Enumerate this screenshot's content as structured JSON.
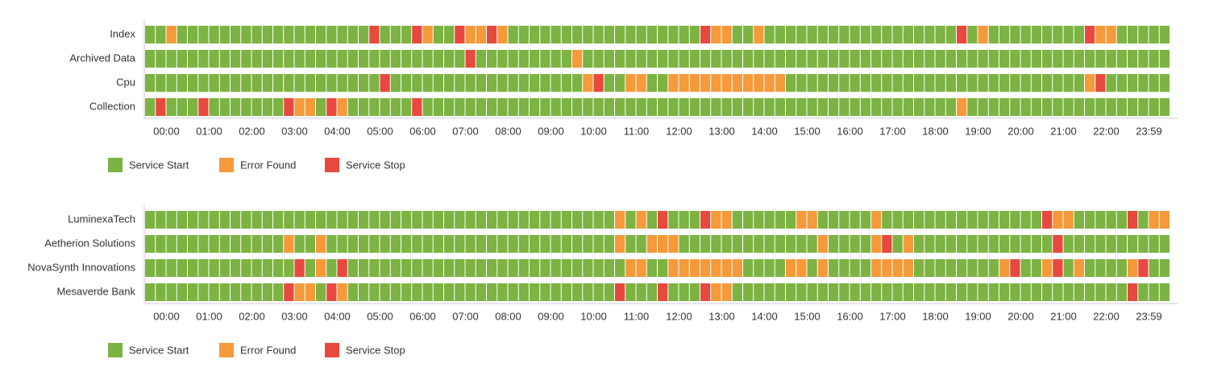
{
  "chart_data": [
    {
      "type": "timeline",
      "categories": [
        "Index",
        "Archived Data",
        "Cpu",
        "Collection"
      ],
      "x": [
        "00:00",
        "01:00",
        "02:00",
        "03:00",
        "04:00",
        "05:00",
        "06:00",
        "07:00",
        "08:00",
        "09:00",
        "10:00",
        "11:00",
        "12:00",
        "13:00",
        "14:00",
        "15:00",
        "16:00",
        "17:00",
        "18:00",
        "19:00",
        "20:00",
        "21:00",
        "22:00",
        "23:59"
      ],
      "series": [
        {
          "name": "Service Start",
          "color": "#7cb342"
        },
        {
          "name": "Error Found",
          "color": "#f59a3a"
        },
        {
          "name": "Service Stop",
          "color": "#e8493f"
        }
      ],
      "values": [
        [
          0,
          0,
          1,
          0,
          0,
          0,
          0,
          0,
          0,
          0,
          0,
          0,
          0,
          0,
          0,
          0,
          0,
          0,
          0,
          0,
          0,
          2,
          0,
          0,
          0,
          2,
          1,
          0,
          0,
          2,
          1,
          1,
          2,
          1,
          0,
          0,
          0,
          0,
          0,
          0,
          0,
          0,
          0,
          0,
          0,
          0,
          0,
          0,
          0,
          0,
          0,
          0,
          2,
          1,
          1,
          0,
          0,
          1,
          0,
          0,
          0,
          0,
          0,
          0,
          0,
          0,
          0,
          0,
          0,
          0,
          0,
          0,
          0,
          0,
          0,
          0,
          2,
          0,
          1,
          0,
          0,
          0,
          0,
          0,
          0,
          0,
          0,
          0,
          2,
          1,
          1,
          0,
          0,
          0,
          0,
          0
        ],
        [
          0,
          0,
          0,
          0,
          0,
          0,
          0,
          0,
          0,
          0,
          0,
          0,
          0,
          0,
          0,
          0,
          0,
          0,
          0,
          0,
          0,
          0,
          0,
          0,
          0,
          0,
          0,
          0,
          0,
          0,
          2,
          0,
          0,
          0,
          0,
          0,
          0,
          0,
          0,
          0,
          1,
          0,
          0,
          0,
          0,
          0,
          0,
          0,
          0,
          0,
          0,
          0,
          0,
          0,
          0,
          0,
          0,
          0,
          0,
          0,
          0,
          0,
          0,
          0,
          0,
          0,
          0,
          0,
          0,
          0,
          0,
          0,
          0,
          0,
          0,
          0,
          0,
          0,
          0,
          0,
          0,
          0,
          0,
          0,
          0,
          0,
          0,
          0,
          0,
          0,
          0,
          0,
          0,
          0,
          0,
          0
        ],
        [
          0,
          0,
          0,
          0,
          0,
          0,
          0,
          0,
          0,
          0,
          0,
          0,
          0,
          0,
          0,
          0,
          0,
          0,
          0,
          0,
          0,
          0,
          2,
          0,
          0,
          0,
          0,
          0,
          0,
          0,
          0,
          0,
          0,
          0,
          0,
          0,
          0,
          0,
          0,
          0,
          0,
          1,
          2,
          0,
          0,
          1,
          1,
          0,
          0,
          1,
          1,
          1,
          1,
          1,
          1,
          1,
          1,
          1,
          1,
          1,
          0,
          0,
          0,
          0,
          0,
          0,
          0,
          0,
          0,
          0,
          0,
          0,
          0,
          0,
          0,
          0,
          0,
          0,
          0,
          0,
          0,
          0,
          0,
          0,
          0,
          0,
          0,
          0,
          1,
          2,
          0,
          0,
          0,
          0,
          0,
          0
        ],
        [
          0,
          2,
          0,
          0,
          0,
          2,
          0,
          0,
          0,
          0,
          0,
          0,
          0,
          2,
          1,
          1,
          0,
          2,
          1,
          0,
          0,
          0,
          0,
          0,
          0,
          2,
          0,
          0,
          0,
          0,
          0,
          0,
          0,
          0,
          0,
          0,
          0,
          0,
          0,
          0,
          0,
          0,
          0,
          0,
          0,
          0,
          0,
          0,
          0,
          0,
          0,
          0,
          0,
          0,
          0,
          0,
          0,
          0,
          0,
          0,
          0,
          0,
          0,
          0,
          0,
          0,
          0,
          0,
          0,
          0,
          0,
          0,
          0,
          0,
          0,
          0,
          1,
          0,
          0,
          0,
          0,
          0,
          0,
          0,
          0,
          0,
          0,
          0,
          0,
          0,
          0,
          0,
          0,
          0,
          0,
          0
        ]
      ]
    },
    {
      "type": "timeline",
      "categories": [
        "LuminexaTech",
        "Aetherion Solutions",
        "NovaSynth Innovations",
        "Mesaverde Bank"
      ],
      "x": [
        "00:00",
        "01:00",
        "02:00",
        "03:00",
        "04:00",
        "05:00",
        "06:00",
        "07:00",
        "08:00",
        "09:00",
        "10:00",
        "11:00",
        "12:00",
        "13:00",
        "14:00",
        "15:00",
        "16:00",
        "17:00",
        "18:00",
        "19:00",
        "20:00",
        "21:00",
        "22:00",
        "23:59"
      ],
      "series": [
        {
          "name": "Service Start",
          "color": "#7cb342"
        },
        {
          "name": "Error Found",
          "color": "#f59a3a"
        },
        {
          "name": "Service Stop",
          "color": "#e8493f"
        }
      ],
      "values": [
        [
          0,
          0,
          0,
          0,
          0,
          0,
          0,
          0,
          0,
          0,
          0,
          0,
          0,
          0,
          0,
          0,
          0,
          0,
          0,
          0,
          0,
          0,
          0,
          0,
          0,
          0,
          0,
          0,
          0,
          0,
          0,
          0,
          0,
          0,
          0,
          0,
          0,
          0,
          0,
          0,
          0,
          0,
          0,
          0,
          1,
          0,
          1,
          0,
          2,
          0,
          0,
          0,
          2,
          1,
          1,
          0,
          0,
          0,
          0,
          0,
          0,
          1,
          1,
          0,
          0,
          0,
          0,
          0,
          1,
          0,
          0,
          0,
          0,
          0,
          0,
          0,
          0,
          0,
          0,
          0,
          0,
          0,
          0,
          0,
          2,
          1,
          1,
          0,
          0,
          0,
          0,
          0,
          2,
          0,
          1,
          1
        ],
        [
          0,
          0,
          0,
          0,
          0,
          0,
          0,
          0,
          0,
          0,
          0,
          0,
          0,
          1,
          0,
          0,
          1,
          0,
          0,
          0,
          0,
          0,
          0,
          0,
          0,
          0,
          0,
          0,
          0,
          0,
          0,
          0,
          0,
          0,
          0,
          0,
          0,
          0,
          0,
          0,
          0,
          0,
          0,
          0,
          1,
          0,
          0,
          1,
          1,
          1,
          0,
          0,
          0,
          0,
          0,
          0,
          0,
          0,
          0,
          0,
          0,
          0,
          0,
          1,
          0,
          0,
          0,
          0,
          1,
          2,
          0,
          1,
          0,
          0,
          0,
          0,
          0,
          0,
          0,
          0,
          0,
          0,
          0,
          0,
          0,
          2,
          0,
          0,
          0,
          0,
          0,
          0,
          0,
          0,
          0,
          0
        ],
        [
          0,
          0,
          0,
          0,
          0,
          0,
          0,
          0,
          0,
          0,
          0,
          0,
          0,
          0,
          2,
          0,
          1,
          0,
          2,
          0,
          0,
          0,
          0,
          0,
          0,
          0,
          0,
          0,
          0,
          0,
          0,
          0,
          0,
          0,
          0,
          0,
          0,
          0,
          0,
          0,
          0,
          0,
          0,
          0,
          0,
          1,
          1,
          0,
          0,
          1,
          1,
          1,
          1,
          1,
          1,
          1,
          0,
          0,
          0,
          0,
          1,
          1,
          0,
          1,
          0,
          0,
          0,
          0,
          1,
          1,
          1,
          1,
          0,
          0,
          0,
          0,
          0,
          0,
          0,
          0,
          1,
          2,
          0,
          0,
          1,
          2,
          0,
          1,
          0,
          0,
          0,
          0,
          1,
          2,
          0,
          0
        ],
        [
          0,
          0,
          0,
          0,
          0,
          0,
          0,
          0,
          0,
          0,
          0,
          0,
          0,
          2,
          1,
          1,
          0,
          2,
          1,
          0,
          0,
          0,
          0,
          0,
          0,
          0,
          0,
          0,
          0,
          0,
          0,
          0,
          0,
          0,
          0,
          0,
          0,
          0,
          0,
          0,
          0,
          0,
          0,
          0,
          2,
          0,
          0,
          0,
          2,
          0,
          0,
          0,
          2,
          1,
          1,
          0,
          0,
          0,
          0,
          0,
          0,
          0,
          0,
          0,
          0,
          0,
          0,
          0,
          0,
          0,
          0,
          0,
          0,
          0,
          0,
          0,
          0,
          0,
          0,
          0,
          0,
          0,
          0,
          0,
          0,
          0,
          0,
          0,
          0,
          0,
          0,
          0,
          2,
          0,
          0,
          0
        ]
      ]
    }
  ]
}
